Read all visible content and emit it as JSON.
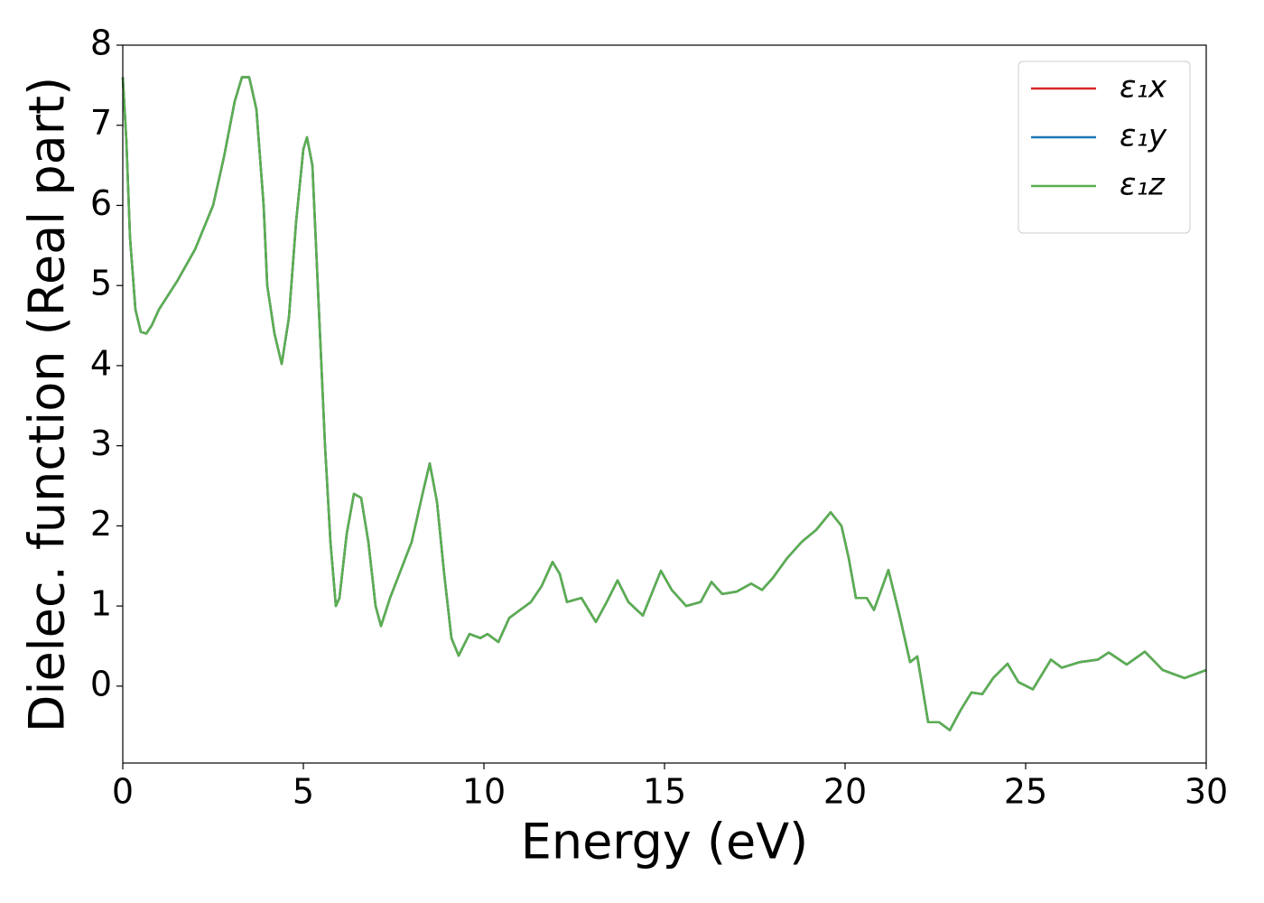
{
  "chart_data": {
    "type": "line",
    "xlabel": "Energy (eV)",
    "ylabel": "Dielec. function (Real part)",
    "x": [
      0,
      0.1,
      0.2,
      0.35,
      0.5,
      0.65,
      0.8,
      1.0,
      1.5,
      2.0,
      2.5,
      2.8,
      3.1,
      3.3,
      3.5,
      3.7,
      3.9,
      4.0,
      4.2,
      4.4,
      4.6,
      4.8,
      5.0,
      5.1,
      5.25,
      5.4,
      5.6,
      5.75,
      5.9,
      6.0,
      6.2,
      6.4,
      6.6,
      6.8,
      7.0,
      7.15,
      7.4,
      7.7,
      8.0,
      8.3,
      8.5,
      8.7,
      8.9,
      9.1,
      9.3,
      9.6,
      9.9,
      10.1,
      10.4,
      10.7,
      11.0,
      11.3,
      11.6,
      11.9,
      12.1,
      12.3,
      12.7,
      13.1,
      13.4,
      13.7,
      14.0,
      14.4,
      14.9,
      15.2,
      15.6,
      16.0,
      16.3,
      16.6,
      17.0,
      17.4,
      17.7,
      18.0,
      18.4,
      18.8,
      19.2,
      19.6,
      19.9,
      20.1,
      20.3,
      20.6,
      20.8,
      21.2,
      21.5,
      21.8,
      22.0,
      22.3,
      22.6,
      22.9,
      23.2,
      23.5,
      23.8,
      24.1,
      24.5,
      24.8,
      25.2,
      25.7,
      26.0,
      26.5,
      27.0,
      27.3,
      27.8,
      28.3,
      28.8,
      29.4,
      30
    ],
    "series": [
      {
        "name": "ε₁x",
        "color": "#d62728",
        "values": [
          7.6,
          6.8,
          5.6,
          4.7,
          4.42,
          4.4,
          4.5,
          4.7,
          5.05,
          5.45,
          6.0,
          6.6,
          7.3,
          7.6,
          7.6,
          7.2,
          6.0,
          5.0,
          4.4,
          4.02,
          4.6,
          5.8,
          6.7,
          6.85,
          6.5,
          5.0,
          3.0,
          1.8,
          1.0,
          1.1,
          1.9,
          2.4,
          2.35,
          1.8,
          1.0,
          0.75,
          1.1,
          1.45,
          1.8,
          2.4,
          2.78,
          2.3,
          1.4,
          0.6,
          0.38,
          0.65,
          0.6,
          0.65,
          0.55,
          0.85,
          0.95,
          1.05,
          1.25,
          1.55,
          1.4,
          1.05,
          1.1,
          0.8,
          1.05,
          1.32,
          1.05,
          0.88,
          1.44,
          1.2,
          1.0,
          1.05,
          1.3,
          1.15,
          1.18,
          1.28,
          1.2,
          1.35,
          1.6,
          1.8,
          1.95,
          2.17,
          2.0,
          1.6,
          1.1,
          1.1,
          0.95,
          1.45,
          0.9,
          0.3,
          0.37,
          -0.45,
          -0.45,
          -0.55,
          -0.3,
          -0.08,
          -0.1,
          0.1,
          0.28,
          0.05,
          -0.04,
          0.33,
          0.23,
          0.3,
          0.33,
          0.42,
          0.27,
          0.43,
          0.2,
          0.1,
          0.2
        ]
      },
      {
        "name": "ε₁y",
        "color": "#1f77b4",
        "values": [
          7.6,
          6.8,
          5.6,
          4.7,
          4.42,
          4.4,
          4.5,
          4.7,
          5.05,
          5.45,
          6.0,
          6.6,
          7.3,
          7.6,
          7.6,
          7.2,
          6.0,
          5.0,
          4.4,
          4.02,
          4.6,
          5.8,
          6.7,
          6.85,
          6.5,
          5.0,
          3.0,
          1.8,
          1.0,
          1.1,
          1.9,
          2.4,
          2.35,
          1.8,
          1.0,
          0.75,
          1.1,
          1.45,
          1.8,
          2.4,
          2.78,
          2.3,
          1.4,
          0.6,
          0.38,
          0.65,
          0.6,
          0.65,
          0.55,
          0.85,
          0.95,
          1.05,
          1.25,
          1.55,
          1.4,
          1.05,
          1.1,
          0.8,
          1.05,
          1.32,
          1.05,
          0.88,
          1.44,
          1.2,
          1.0,
          1.05,
          1.3,
          1.15,
          1.18,
          1.28,
          1.2,
          1.35,
          1.6,
          1.8,
          1.95,
          2.17,
          2.0,
          1.6,
          1.1,
          1.1,
          0.95,
          1.45,
          0.9,
          0.3,
          0.37,
          -0.45,
          -0.45,
          -0.55,
          -0.3,
          -0.08,
          -0.1,
          0.1,
          0.28,
          0.05,
          -0.04,
          0.33,
          0.23,
          0.3,
          0.33,
          0.42,
          0.27,
          0.43,
          0.2,
          0.1,
          0.2
        ]
      },
      {
        "name": "ε₁z",
        "color": "#5aaf50",
        "values": [
          7.6,
          6.8,
          5.6,
          4.7,
          4.42,
          4.4,
          4.5,
          4.7,
          5.05,
          5.45,
          6.0,
          6.6,
          7.3,
          7.6,
          7.6,
          7.2,
          6.0,
          5.0,
          4.4,
          4.02,
          4.6,
          5.8,
          6.7,
          6.85,
          6.5,
          5.0,
          3.0,
          1.8,
          1.0,
          1.1,
          1.9,
          2.4,
          2.35,
          1.8,
          1.0,
          0.75,
          1.1,
          1.45,
          1.8,
          2.4,
          2.78,
          2.3,
          1.4,
          0.6,
          0.38,
          0.65,
          0.6,
          0.65,
          0.55,
          0.85,
          0.95,
          1.05,
          1.25,
          1.55,
          1.4,
          1.05,
          1.1,
          0.8,
          1.05,
          1.32,
          1.05,
          0.88,
          1.44,
          1.2,
          1.0,
          1.05,
          1.3,
          1.15,
          1.18,
          1.28,
          1.2,
          1.35,
          1.6,
          1.8,
          1.95,
          2.17,
          2.0,
          1.6,
          1.1,
          1.1,
          0.95,
          1.45,
          0.9,
          0.3,
          0.37,
          -0.45,
          -0.45,
          -0.55,
          -0.3,
          -0.08,
          -0.1,
          0.1,
          0.28,
          0.05,
          -0.04,
          0.33,
          0.23,
          0.3,
          0.33,
          0.42,
          0.27,
          0.43,
          0.2,
          0.1,
          0.2
        ]
      }
    ],
    "xlim": [
      0,
      30
    ],
    "xticks": [
      0,
      5,
      10,
      15,
      20,
      25,
      30
    ],
    "ylim": [
      -0.96,
      8
    ],
    "yticks": [
      0,
      1,
      2,
      3,
      4,
      5,
      6,
      7,
      8
    ],
    "grid": false,
    "legend": "upper right"
  }
}
